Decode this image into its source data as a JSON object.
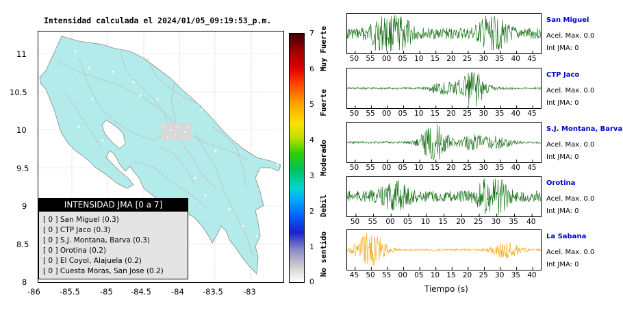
{
  "map": {
    "title": "Intensidad calculada el 2024/01/05_09:19:53_p.m.",
    "y_ticks": [
      "11",
      "10.5",
      "10",
      "9.5",
      "9",
      "8.5",
      "8"
    ],
    "x_ticks": [
      "-86",
      "-85.5",
      "-85",
      "-84.5",
      "-84",
      "-83.5",
      "-83"
    ],
    "land_color": "#b3ebeb",
    "legend": {
      "header": "INTENSIDAD JMA [0 a 7]",
      "items": [
        "[ 0 ]  San Miguel (0.3)",
        "[ 0 ]  CTP Jaco (0.3)",
        "[ 0 ]  S.J. Montana, Barva (0.3)",
        "[ 0 ]  Orotina (0.2)",
        "[ 0 ]  El Coyol, Alajuela (0.2)",
        "[ 0 ]  Cuesta Moras, San Jose (0.2)"
      ]
    }
  },
  "colorbar": {
    "ticks": [
      "7",
      "6",
      "5",
      "4",
      "3",
      "2",
      "1",
      "0"
    ],
    "labels": [
      "Muy Fuerte",
      "Fuerte",
      "Moderado",
      "Debil",
      "No sentido"
    ]
  },
  "stations": [
    {
      "name": "San Miguel",
      "acc": "Acel. Max. 0.0",
      "int": "Int JMA: 0",
      "color": "#006400",
      "ticks": [
        "50",
        "55",
        "00",
        "05",
        "10",
        "15",
        "20",
        "25",
        "30",
        "35",
        "40",
        "45"
      ]
    },
    {
      "name": "CTP Jaco",
      "acc": "Acel. Max. 0.0",
      "int": "Int JMA: 0",
      "color": "#006400",
      "ticks": [
        "50",
        "55",
        "00",
        "05",
        "10",
        "15",
        "20",
        "25",
        "30",
        "35",
        "40",
        "45"
      ]
    },
    {
      "name": "S.J. Montana, Barva",
      "acc": "Acel. Max. 0.0",
      "int": "Int JMA: 0",
      "color": "#006400",
      "ticks": [
        "50",
        "55",
        "00",
        "05",
        "10",
        "15",
        "20",
        "25",
        "30",
        "35",
        "40",
        "45"
      ]
    },
    {
      "name": "Orotina",
      "acc": "Acel. Max. 0.0",
      "int": "Int JMA: 0",
      "color": "#006400",
      "ticks": [
        "50",
        "55",
        "00",
        "05",
        "10",
        "15",
        "20",
        "25",
        "30",
        "35",
        "40"
      ]
    },
    {
      "name": "La Sabana",
      "acc": "Acel. Max. 0.0",
      "int": "Int JMA: 0",
      "color": "#f0a000",
      "ticks": [
        "45",
        "50",
        "55",
        "00",
        "05",
        "10",
        "15",
        "20",
        "25",
        "30",
        "35",
        "40"
      ]
    }
  ],
  "x_axis_label": "Tiempo (s)"
}
